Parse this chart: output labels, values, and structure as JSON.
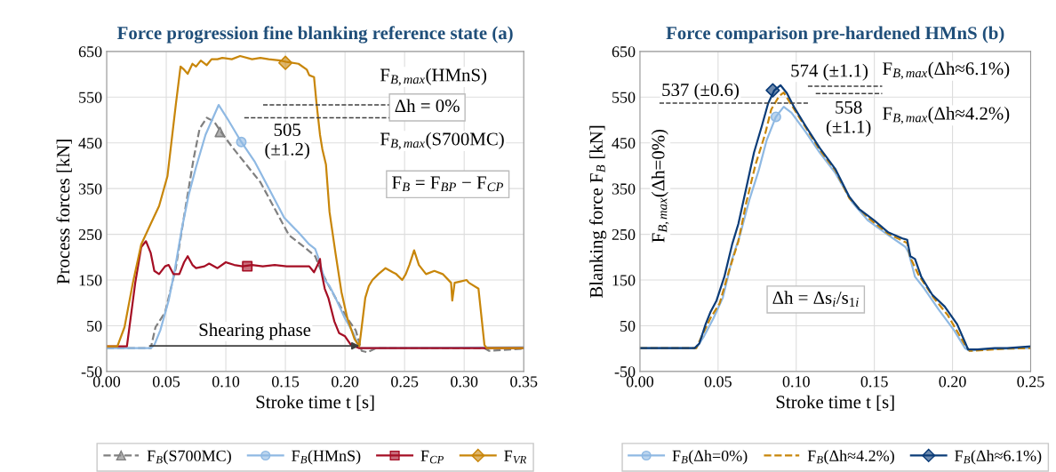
{
  "chart_data": [
    {
      "type": "line",
      "title": "Force progression fine blanking reference state (a)",
      "xlabel": "Stroke time t [s]",
      "ylabel": "Process forces [kN]",
      "xlim": [
        0,
        0.35
      ],
      "xticks": [
        {
          "value": 0,
          "label": "0.00"
        },
        {
          "value": 0.05,
          "label": "0.05"
        },
        {
          "value": 0.1,
          "label": "0.10"
        },
        {
          "value": 0.15,
          "label": "0.15"
        },
        {
          "value": 0.2,
          "label": "0.20"
        },
        {
          "value": 0.25,
          "label": "0.25"
        },
        {
          "value": 0.3,
          "label": "0.30"
        },
        {
          "value": 0.35,
          "label": "0.35"
        }
      ],
      "ylim": [
        -50,
        650
      ],
      "yticks": [
        -50,
        50,
        150,
        250,
        350,
        450,
        550,
        650
      ],
      "grid": true,
      "legend": "bottom",
      "annotations": [
        "F$_{B,max}$(HMnS)",
        "Δh = 0%",
        "F$_{B,max}$(S700MC)",
        "505\n(±1.2)",
        "F$_{B}$ = F$_{BP}$ − F$_{CP}$",
        "Shearing phase"
      ],
      "ref_lines": [
        {
          "axis": "y",
          "value": 533,
          "color": "#404040",
          "line_style": "dashed"
        },
        {
          "axis": "y",
          "value": 505,
          "color": "#404040",
          "line_style": "dashed"
        }
      ],
      "series": [
        {
          "type": "scatter",
          "color": "#808080",
          "marker": "triangle",
          "x": [
            0.095
          ],
          "values": [
            474
          ]
        },
        {
          "type": "scatter",
          "color": "#8fb9e3",
          "marker": "circle",
          "x": [
            0.113
          ],
          "values": [
            452
          ]
        },
        {
          "type": "scatter",
          "color": "#a50e24",
          "marker": "square",
          "x": [
            0.118
          ],
          "values": [
            180
          ]
        },
        {
          "type": "scatter",
          "color": "#c8860a",
          "marker": "diamond",
          "x": [
            0.15
          ],
          "values": [
            625
          ]
        },
        {
          "name": "F$_{B}$(S700MC)",
          "color": "#808080",
          "line_style": "dashed",
          "x": [
            0,
            0.037,
            0.041,
            0.049,
            0.058,
            0.066,
            0.073,
            0.078,
            0.084,
            0.09,
            0.096,
            0.105,
            0.117,
            0.129,
            0.141,
            0.153,
            0.166,
            0.175,
            0.18,
            0.185,
            0.192,
            0.202,
            0.209,
            0.214,
            0.219,
            0.226,
            0.317,
            0.321,
            0.35
          ],
          "values": [
            1,
            1,
            47,
            79,
            176,
            306,
            416,
            481,
            505,
            497,
            474,
            442,
            403,
            364,
            306,
            248,
            222,
            202,
            170,
            144,
            111,
            66,
            40,
            -5,
            -8,
            1,
            1,
            -5,
            0
          ]
        },
        {
          "name": "F$_{B}$(HMnS)",
          "color": "#8fb9e3",
          "line_style": "solid",
          "x": [
            0,
            0.037,
            0.04,
            0.045,
            0.052,
            0.057,
            0.063,
            0.069,
            0.075,
            0.083,
            0.094,
            0.102,
            0.113,
            0.124,
            0.136,
            0.149,
            0.161,
            0.17,
            0.175,
            0.178,
            0.183,
            0.187,
            0.192,
            0.2,
            0.207,
            0.212,
            0.219,
            0.35
          ],
          "values": [
            1,
            1,
            8,
            40,
            105,
            170,
            261,
            338,
            397,
            468,
            533,
            500,
            452,
            410,
            351,
            286,
            254,
            228,
            218,
            196,
            150,
            137,
            111,
            66,
            34,
            1,
            1,
            3
          ]
        },
        {
          "name": "F$_{CP}$",
          "color": "#a50e24",
          "line_style": "solid",
          "x": [
            0,
            0.017,
            0.024,
            0.029,
            0.033,
            0.037,
            0.04,
            0.044,
            0.049,
            0.052,
            0.056,
            0.061,
            0.065,
            0.068,
            0.072,
            0.075,
            0.082,
            0.086,
            0.093,
            0.1,
            0.107,
            0.114,
            0.122,
            0.131,
            0.141,
            0.151,
            0.161,
            0.17,
            0.174,
            0.177,
            0.179,
            0.18,
            0.183,
            0.186,
            0.191,
            0.195,
            0.2,
            0.205,
            0.212,
            0.35
          ],
          "values": [
            5,
            5,
            144,
            222,
            235,
            209,
            170,
            163,
            180,
            183,
            163,
            163,
            189,
            202,
            183,
            176,
            180,
            186,
            176,
            189,
            183,
            180,
            183,
            180,
            183,
            180,
            180,
            180,
            167,
            183,
            196,
            170,
            131,
            111,
            60,
            34,
            27,
            8,
            1,
            1
          ]
        },
        {
          "name": "F$_{VR}$",
          "color": "#c8860a",
          "line_style": "solid",
          "x": [
            0,
            0.009,
            0.015,
            0.022,
            0.029,
            0.037,
            0.044,
            0.051,
            0.058,
            0.062,
            0.065,
            0.068,
            0.072,
            0.075,
            0.079,
            0.084,
            0.088,
            0.093,
            0.097,
            0.105,
            0.112,
            0.122,
            0.129,
            0.136,
            0.146,
            0.151,
            0.161,
            0.168,
            0.17,
            0.174,
            0.176,
            0.179,
            0.181,
            0.184,
            0.187,
            0.192,
            0.197,
            0.202,
            0.208,
            0.212,
            0.214,
            0.217,
            0.22,
            0.223,
            0.228,
            0.234,
            0.24,
            0.243,
            0.248,
            0.251,
            0.254,
            0.258,
            0.262,
            0.268,
            0.275,
            0.282,
            0.289,
            0.29,
            0.292,
            0.297,
            0.302,
            0.304,
            0.312,
            0.317,
            0.319,
            0.35
          ],
          "values": [
            5,
            5,
            47,
            144,
            228,
            273,
            312,
            377,
            533,
            617,
            610,
            601,
            623,
            617,
            630,
            620,
            633,
            633,
            636,
            633,
            640,
            633,
            636,
            633,
            630,
            627,
            623,
            610,
            598,
            594,
            539,
            468,
            436,
            403,
            299,
            209,
            124,
            66,
            21,
            5,
            47,
            111,
            137,
            150,
            163,
            176,
            167,
            163,
            150,
            163,
            183,
            215,
            183,
            163,
            170,
            163,
            144,
            105,
            144,
            147,
            150,
            144,
            131,
            8,
            1,
            1
          ]
        }
      ]
    },
    {
      "type": "line",
      "title": "Force comparison pre-hardened HMnS (b)",
      "xlabel": "Stroke time t [s]",
      "ylabel": "Blanking force F$_{B}$ [kN]",
      "xlim": [
        0,
        0.25
      ],
      "xticks": [
        {
          "value": 0,
          "label": "0.00"
        },
        {
          "value": 0.05,
          "label": "0.05"
        },
        {
          "value": 0.1,
          "label": "0.10"
        },
        {
          "value": 0.15,
          "label": "0.15"
        },
        {
          "value": 0.2,
          "label": "0.20"
        },
        {
          "value": 0.25,
          "label": "0.25"
        }
      ],
      "ylim": [
        -50,
        650
      ],
      "yticks": [
        -50,
        50,
        150,
        250,
        350,
        450,
        550,
        650
      ],
      "grid": true,
      "legend": "bottom",
      "annotations": [
        "537 (±0.6)",
        "574 (±1.1)",
        "558\n(±1.1)",
        "F$_{B,max}$(Δh≈6.1%)",
        "F$_{B,max}$(Δh≈4.2%)",
        "F$_{B,max}$(Δh=0%)",
        "Δh = Δs$_{i}$/s$_{1i}$"
      ],
      "ref_lines": [
        {
          "axis": "y",
          "value": 537,
          "color": "#404040",
          "line_style": "dashed"
        },
        {
          "axis": "y",
          "value": 574,
          "color": "#404040",
          "line_style": "dashed"
        },
        {
          "axis": "y",
          "value": 558,
          "color": "#404040",
          "line_style": "dashed"
        }
      ],
      "series": [
        {
          "type": "scatter",
          "color": "#8fb9e3",
          "marker": "circle",
          "x": [
            0.087
          ],
          "values": [
            507
          ]
        },
        {
          "type": "scatter",
          "color": "#0b3c78",
          "marker": "diamond",
          "x": [
            0.085
          ],
          "values": [
            565
          ]
        },
        {
          "name": "F$_{B}$(Δh=0%)",
          "color": "#8fb9e3",
          "line_style": "solid",
          "x": [
            0,
            0.036,
            0.041,
            0.047,
            0.053,
            0.059,
            0.064,
            0.07,
            0.076,
            0.081,
            0.087,
            0.092,
            0.097,
            0.106,
            0.115,
            0.125,
            0.136,
            0.146,
            0.159,
            0.17,
            0.172,
            0.176,
            0.182,
            0.191,
            0.201,
            0.208,
            0.211,
            0.218,
            0.235,
            0.25
          ],
          "values": [
            1,
            1,
            27,
            66,
            111,
            196,
            248,
            325,
            390,
            455,
            507,
            529,
            516,
            474,
            429,
            384,
            319,
            280,
            248,
            222,
            209,
            157,
            131,
            86,
            40,
            1,
            -5,
            -2,
            0,
            1
          ]
        },
        {
          "name": "F$_{B}$(Δh≈4.2%)",
          "color": "#c8860a",
          "line_style": "dashed",
          "x": [
            0,
            0.036,
            0.04,
            0.045,
            0.051,
            0.057,
            0.063,
            0.068,
            0.074,
            0.08,
            0.084,
            0.089,
            0.092,
            0.097,
            0.106,
            0.115,
            0.125,
            0.134,
            0.146,
            0.159,
            0.171,
            0.173,
            0.178,
            0.188,
            0.197,
            0.208,
            0.211,
            0.235,
            0.25
          ],
          "values": [
            1,
            1,
            30,
            66,
            99,
            170,
            235,
            319,
            403,
            468,
            523,
            552,
            560,
            533,
            484,
            435,
            390,
            329,
            286,
            251,
            231,
            199,
            163,
            111,
            73,
            8,
            -5,
            0,
            1
          ]
        },
        {
          "name": "F$_{B}$(Δh≈6.1%)",
          "color": "#0b3c78",
          "line_style": "solid",
          "x": [
            0,
            0.035,
            0.038,
            0.042,
            0.045,
            0.049,
            0.054,
            0.059,
            0.063,
            0.068,
            0.073,
            0.078,
            0.082,
            0.086,
            0.09,
            0.094,
            0.099,
            0.106,
            0.115,
            0.125,
            0.134,
            0.14,
            0.15,
            0.159,
            0.168,
            0.171,
            0.173,
            0.176,
            0.18,
            0.187,
            0.195,
            0.203,
            0.208,
            0.21,
            0.216,
            0.227,
            0.235,
            0.25
          ],
          "values": [
            1,
            1,
            11,
            53,
            79,
            105,
            157,
            228,
            273,
            351,
            429,
            487,
            536,
            565,
            576,
            559,
            526,
            487,
            439,
            393,
            332,
            306,
            280,
            254,
            241,
            238,
            202,
            196,
            157,
            118,
            92,
            53,
            14,
            -2,
            -2,
            1,
            1,
            5
          ]
        }
      ]
    }
  ]
}
